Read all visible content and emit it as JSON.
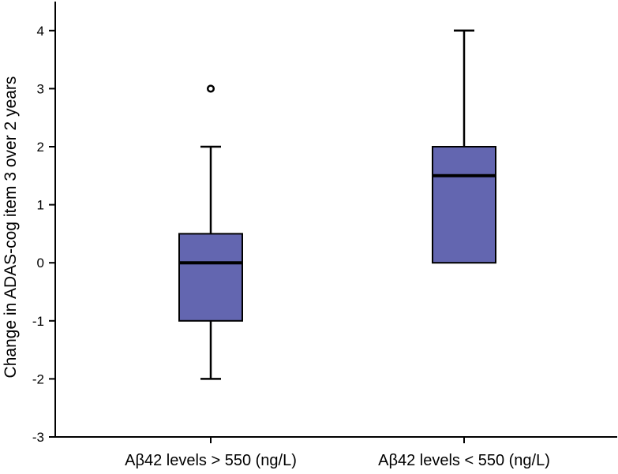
{
  "chart_data": {
    "type": "box",
    "title": "",
    "xlabel": "",
    "ylabel": "Change in ADAS-cog item 3 over 2 years",
    "ylim": [
      -3,
      4.5
    ],
    "yticks": [
      -3,
      -2,
      -1,
      0,
      1,
      2,
      3,
      4
    ],
    "categories": [
      "Aβ42 levels > 550 (ng/L)",
      "Aβ42 levels < 550 (ng/L)"
    ],
    "box_color": "#6366b0",
    "series": [
      {
        "category": "Aβ42 levels > 550 (ng/L)",
        "whisker_low": -2,
        "q1": -1,
        "median": 0,
        "q3": 0.5,
        "whisker_high": 2,
        "outliers": [
          3
        ]
      },
      {
        "category": "Aβ42 levels < 550 (ng/L)",
        "whisker_low": 0,
        "q1": 0,
        "median": 1.5,
        "q3": 2,
        "whisker_high": 4,
        "outliers": []
      }
    ],
    "grid": false,
    "legend": "none"
  }
}
